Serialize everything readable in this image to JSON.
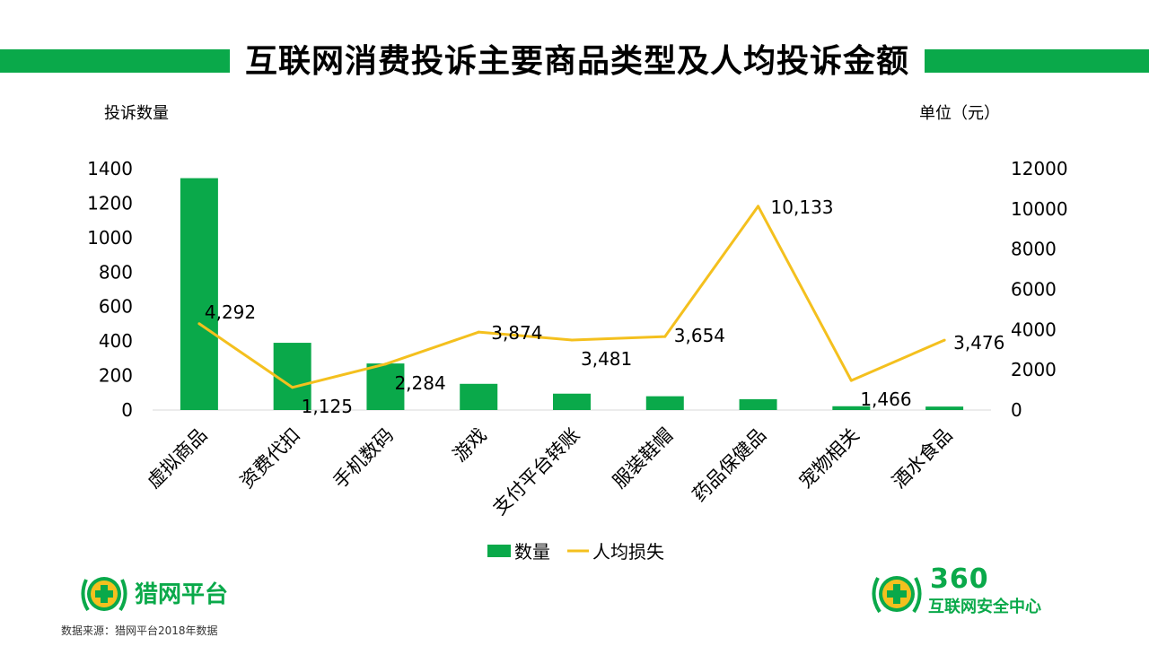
{
  "header": {
    "title": "互联网消费投诉主要商品类型及人均投诉金额",
    "left_axis_title": "投诉数量",
    "right_axis_title": "单位（元）"
  },
  "colors": {
    "bar": "#0aa94a",
    "line": "#f4c01e",
    "band": "#0aa94a"
  },
  "chart_data": {
    "type": "bar",
    "categories": [
      "虚拟商品",
      "资费代扣",
      "手机数码",
      "游戏",
      "支付平台转账",
      "服装鞋帽",
      "药品保健品",
      "宠物相关",
      "酒水食品"
    ],
    "series": [
      {
        "name": "数量",
        "type": "bar",
        "axis": "left",
        "values": [
          1345,
          390,
          270,
          152,
          95,
          80,
          63,
          22,
          20
        ]
      },
      {
        "name": "人均损失",
        "type": "line",
        "axis": "right",
        "values": [
          4292,
          1125,
          2284,
          3874,
          3481,
          3654,
          10133,
          1466,
          3476
        ],
        "labels": [
          "4,292",
          "1,125",
          "2,284",
          "3,874",
          "3,481",
          "3,654",
          "10,133",
          "1,466",
          "3,476"
        ]
      }
    ],
    "left_axis": {
      "ylim": [
        0,
        1400
      ],
      "ticks": [
        "0",
        "200",
        "400",
        "600",
        "800",
        "1000",
        "1200",
        "1400"
      ]
    },
    "right_axis": {
      "ylim": [
        0,
        12000
      ],
      "ticks": [
        "0",
        "2000",
        "4000",
        "6000",
        "8000",
        "10000",
        "12000"
      ]
    },
    "grid": false,
    "legend": "bottom"
  },
  "footer": {
    "source": "数据来源：猎网平台2018年数据",
    "logo_left_text": "猎网平台",
    "logo_right_number": "360",
    "logo_right_text": "互联网安全中心"
  }
}
